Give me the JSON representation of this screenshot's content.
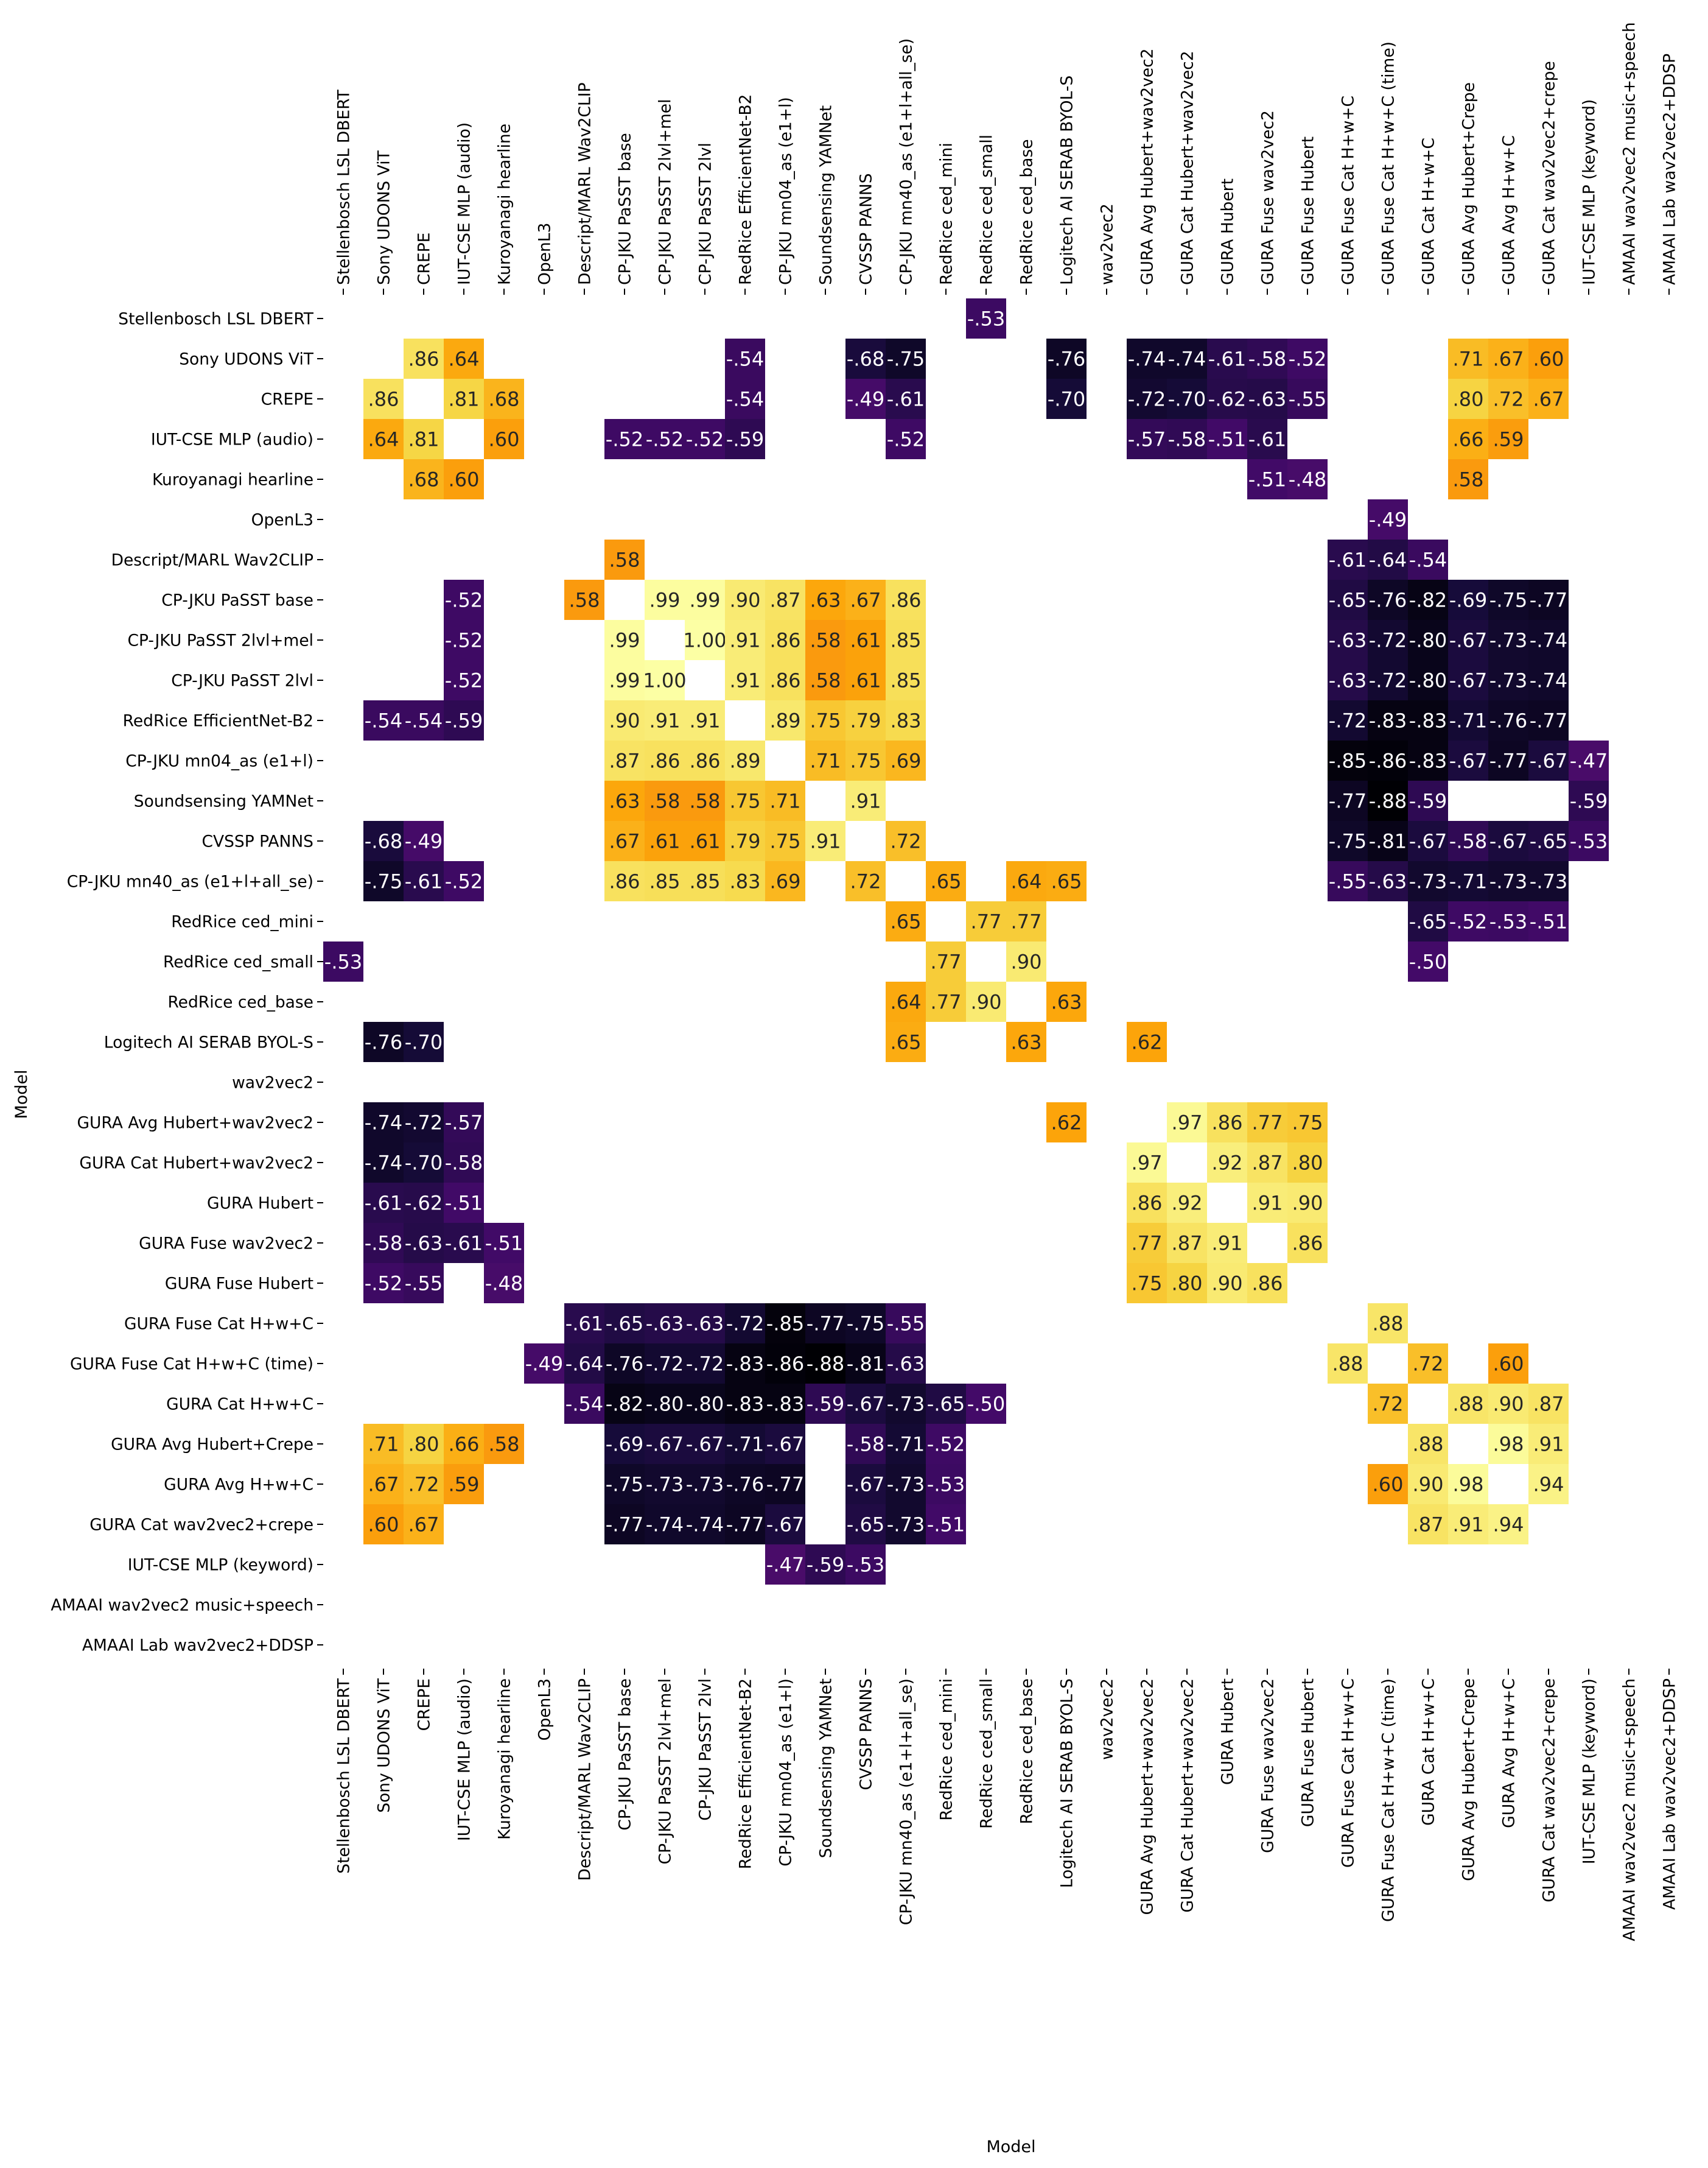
{
  "chart_data": {
    "type": "heatmap",
    "title": "",
    "xlabel": "Model",
    "ylabel": "Model",
    "colormap": "inferno",
    "value_range": [
      -0.88,
      1.0
    ],
    "colorbar": false,
    "masked_cells_blank": true,
    "labels": [
      "Stellenbosch LSL DBERT",
      "Sony UDONS ViT",
      "CREPE",
      "IUT-CSE MLP (audio)",
      "Kuroyanagi hearline",
      "OpenL3",
      "Descript/MARL Wav2CLIP",
      "CP-JKU PaSST base",
      "CP-JKU PaSST 2lvl+mel",
      "CP-JKU PaSST 2lvl",
      "RedRice EfficientNet-B2",
      "CP-JKU mn04_as (e1+l)",
      "Soundsensing YAMNet",
      "CVSSP PANNS",
      "CP-JKU mn40_as (e1+l+all_se)",
      "RedRice ced_mini",
      "RedRice ced_small",
      "RedRice ced_base",
      "Logitech AI SERAB BYOL-S",
      "wav2vec2",
      "GURA Avg Hubert+wav2vec2",
      "GURA Cat Hubert+wav2vec2",
      "GURA Hubert",
      "GURA Fuse wav2vec2",
      "GURA Fuse Hubert",
      "GURA Fuse Cat H+w+C",
      "GURA Fuse Cat H+w+C (time)",
      "GURA Cat H+w+C",
      "GURA Avg Hubert+Crepe",
      "GURA Avg H+w+C",
      "GURA Cat wav2vec2+crepe",
      "IUT-CSE MLP (keyword)",
      "AMAAI wav2vec2 music+speech",
      "AMAAI Lab wav2vec2+DDSP"
    ],
    "cells": [
      [
        0,
        16,
        -0.53
      ],
      [
        1,
        2,
        0.86
      ],
      [
        1,
        3,
        0.64
      ],
      [
        1,
        10,
        -0.54
      ],
      [
        1,
        13,
        -0.68
      ],
      [
        1,
        14,
        -0.75
      ],
      [
        1,
        18,
        -0.76
      ],
      [
        1,
        20,
        -0.74
      ],
      [
        1,
        21,
        -0.74
      ],
      [
        1,
        22,
        -0.61
      ],
      [
        1,
        23,
        -0.58
      ],
      [
        1,
        24,
        -0.52
      ],
      [
        1,
        28,
        0.71
      ],
      [
        1,
        29,
        0.67
      ],
      [
        1,
        30,
        0.6
      ],
      [
        2,
        1,
        0.86
      ],
      [
        2,
        3,
        0.81
      ],
      [
        2,
        4,
        0.68
      ],
      [
        2,
        10,
        -0.54
      ],
      [
        2,
        13,
        -0.49
      ],
      [
        2,
        14,
        -0.61
      ],
      [
        2,
        18,
        -0.7
      ],
      [
        2,
        20,
        -0.72
      ],
      [
        2,
        21,
        -0.7
      ],
      [
        2,
        22,
        -0.62
      ],
      [
        2,
        23,
        -0.63
      ],
      [
        2,
        24,
        -0.55
      ],
      [
        2,
        28,
        0.8
      ],
      [
        2,
        29,
        0.72
      ],
      [
        2,
        30,
        0.67
      ],
      [
        3,
        1,
        0.64
      ],
      [
        3,
        2,
        0.81
      ],
      [
        3,
        4,
        0.6
      ],
      [
        3,
        7,
        -0.52
      ],
      [
        3,
        8,
        -0.52
      ],
      [
        3,
        9,
        -0.52
      ],
      [
        3,
        10,
        -0.59
      ],
      [
        3,
        14,
        -0.52
      ],
      [
        3,
        20,
        -0.57
      ],
      [
        3,
        21,
        -0.58
      ],
      [
        3,
        22,
        -0.51
      ],
      [
        3,
        23,
        -0.61
      ],
      [
        3,
        28,
        0.66
      ],
      [
        3,
        29,
        0.59
      ],
      [
        4,
        2,
        0.68
      ],
      [
        4,
        3,
        0.6
      ],
      [
        4,
        23,
        -0.51
      ],
      [
        4,
        24,
        -0.48
      ],
      [
        4,
        28,
        0.58
      ],
      [
        5,
        26,
        -0.49
      ],
      [
        6,
        7,
        0.58
      ],
      [
        6,
        25,
        -0.61
      ],
      [
        6,
        26,
        -0.64
      ],
      [
        6,
        27,
        -0.54
      ],
      [
        7,
        3,
        -0.52
      ],
      [
        7,
        6,
        0.58
      ],
      [
        7,
        8,
        0.99
      ],
      [
        7,
        9,
        0.99
      ],
      [
        7,
        10,
        0.9
      ],
      [
        7,
        11,
        0.87
      ],
      [
        7,
        12,
        0.63
      ],
      [
        7,
        13,
        0.67
      ],
      [
        7,
        14,
        0.86
      ],
      [
        7,
        25,
        -0.65
      ],
      [
        7,
        26,
        -0.76
      ],
      [
        7,
        27,
        -0.82
      ],
      [
        7,
        28,
        -0.69
      ],
      [
        7,
        29,
        -0.75
      ],
      [
        7,
        30,
        -0.77
      ],
      [
        8,
        3,
        -0.52
      ],
      [
        8,
        7,
        0.99
      ],
      [
        8,
        9,
        1.0
      ],
      [
        8,
        10,
        0.91
      ],
      [
        8,
        11,
        0.86
      ],
      [
        8,
        12,
        0.58
      ],
      [
        8,
        13,
        0.61
      ],
      [
        8,
        14,
        0.85
      ],
      [
        8,
        25,
        -0.63
      ],
      [
        8,
        26,
        -0.72
      ],
      [
        8,
        27,
        -0.8
      ],
      [
        8,
        28,
        -0.67
      ],
      [
        8,
        29,
        -0.73
      ],
      [
        8,
        30,
        -0.74
      ],
      [
        9,
        3,
        -0.52
      ],
      [
        9,
        7,
        0.99
      ],
      [
        9,
        8,
        1.0
      ],
      [
        9,
        10,
        0.91
      ],
      [
        9,
        11,
        0.86
      ],
      [
        9,
        12,
        0.58
      ],
      [
        9,
        13,
        0.61
      ],
      [
        9,
        14,
        0.85
      ],
      [
        9,
        25,
        -0.63
      ],
      [
        9,
        26,
        -0.72
      ],
      [
        9,
        27,
        -0.8
      ],
      [
        9,
        28,
        -0.67
      ],
      [
        9,
        29,
        -0.73
      ],
      [
        9,
        30,
        -0.74
      ],
      [
        10,
        1,
        -0.54
      ],
      [
        10,
        2,
        -0.54
      ],
      [
        10,
        3,
        -0.59
      ],
      [
        10,
        7,
        0.9
      ],
      [
        10,
        8,
        0.91
      ],
      [
        10,
        9,
        0.91
      ],
      [
        10,
        11,
        0.89
      ],
      [
        10,
        12,
        0.75
      ],
      [
        10,
        13,
        0.79
      ],
      [
        10,
        14,
        0.83
      ],
      [
        10,
        25,
        -0.72
      ],
      [
        10,
        26,
        -0.83
      ],
      [
        10,
        27,
        -0.83
      ],
      [
        10,
        28,
        -0.71
      ],
      [
        10,
        29,
        -0.76
      ],
      [
        10,
        30,
        -0.77
      ],
      [
        11,
        7,
        0.87
      ],
      [
        11,
        8,
        0.86
      ],
      [
        11,
        9,
        0.86
      ],
      [
        11,
        10,
        0.89
      ],
      [
        11,
        12,
        0.71
      ],
      [
        11,
        13,
        0.75
      ],
      [
        11,
        14,
        0.69
      ],
      [
        11,
        25,
        -0.85
      ],
      [
        11,
        26,
        -0.86
      ],
      [
        11,
        27,
        -0.83
      ],
      [
        11,
        28,
        -0.67
      ],
      [
        11,
        29,
        -0.77
      ],
      [
        11,
        30,
        -0.67
      ],
      [
        11,
        31,
        -0.47
      ],
      [
        12,
        7,
        0.63
      ],
      [
        12,
        8,
        0.58
      ],
      [
        12,
        9,
        0.58
      ],
      [
        12,
        10,
        0.75
      ],
      [
        12,
        11,
        0.71
      ],
      [
        12,
        13,
        0.91
      ],
      [
        12,
        25,
        -0.77
      ],
      [
        12,
        26,
        -0.88
      ],
      [
        12,
        27,
        -0.59
      ],
      [
        12,
        31,
        -0.59
      ],
      [
        13,
        1,
        -0.68
      ],
      [
        13,
        2,
        -0.49
      ],
      [
        13,
        7,
        0.67
      ],
      [
        13,
        8,
        0.61
      ],
      [
        13,
        9,
        0.61
      ],
      [
        13,
        10,
        0.79
      ],
      [
        13,
        11,
        0.75
      ],
      [
        13,
        12,
        0.91
      ],
      [
        13,
        14,
        0.72
      ],
      [
        13,
        25,
        -0.75
      ],
      [
        13,
        26,
        -0.81
      ],
      [
        13,
        27,
        -0.67
      ],
      [
        13,
        28,
        -0.58
      ],
      [
        13,
        29,
        -0.67
      ],
      [
        13,
        30,
        -0.65
      ],
      [
        13,
        31,
        -0.53
      ],
      [
        14,
        1,
        -0.75
      ],
      [
        14,
        2,
        -0.61
      ],
      [
        14,
        3,
        -0.52
      ],
      [
        14,
        7,
        0.86
      ],
      [
        14,
        8,
        0.85
      ],
      [
        14,
        9,
        0.85
      ],
      [
        14,
        10,
        0.83
      ],
      [
        14,
        11,
        0.69
      ],
      [
        14,
        13,
        0.72
      ],
      [
        14,
        15,
        0.65
      ],
      [
        14,
        17,
        0.64
      ],
      [
        14,
        18,
        0.65
      ],
      [
        14,
        25,
        -0.55
      ],
      [
        14,
        26,
        -0.63
      ],
      [
        14,
        27,
        -0.73
      ],
      [
        14,
        28,
        -0.71
      ],
      [
        14,
        29,
        -0.73
      ],
      [
        14,
        30,
        -0.73
      ],
      [
        15,
        14,
        0.65
      ],
      [
        15,
        16,
        0.77
      ],
      [
        15,
        17,
        0.77
      ],
      [
        15,
        27,
        -0.65
      ],
      [
        15,
        28,
        -0.52
      ],
      [
        15,
        29,
        -0.53
      ],
      [
        15,
        30,
        -0.51
      ],
      [
        16,
        0,
        -0.53
      ],
      [
        16,
        15,
        0.77
      ],
      [
        16,
        17,
        0.9
      ],
      [
        16,
        27,
        -0.5
      ],
      [
        17,
        14,
        0.64
      ],
      [
        17,
        15,
        0.77
      ],
      [
        17,
        16,
        0.9
      ],
      [
        17,
        18,
        0.63
      ],
      [
        18,
        1,
        -0.76
      ],
      [
        18,
        2,
        -0.7
      ],
      [
        18,
        14,
        0.65
      ],
      [
        18,
        17,
        0.63
      ],
      [
        18,
        20,
        0.62
      ],
      [
        20,
        1,
        -0.74
      ],
      [
        20,
        2,
        -0.72
      ],
      [
        20,
        3,
        -0.57
      ],
      [
        20,
        18,
        0.62
      ],
      [
        20,
        21,
        0.97
      ],
      [
        20,
        22,
        0.86
      ],
      [
        20,
        23,
        0.77
      ],
      [
        20,
        24,
        0.75
      ],
      [
        21,
        1,
        -0.74
      ],
      [
        21,
        2,
        -0.7
      ],
      [
        21,
        3,
        -0.58
      ],
      [
        21,
        20,
        0.97
      ],
      [
        21,
        22,
        0.92
      ],
      [
        21,
        23,
        0.87
      ],
      [
        21,
        24,
        0.8
      ],
      [
        22,
        1,
        -0.61
      ],
      [
        22,
        2,
        -0.62
      ],
      [
        22,
        3,
        -0.51
      ],
      [
        22,
        20,
        0.86
      ],
      [
        22,
        21,
        0.92
      ],
      [
        22,
        23,
        0.91
      ],
      [
        22,
        24,
        0.9
      ],
      [
        23,
        1,
        -0.58
      ],
      [
        23,
        2,
        -0.63
      ],
      [
        23,
        3,
        -0.61
      ],
      [
        23,
        4,
        -0.51
      ],
      [
        23,
        20,
        0.77
      ],
      [
        23,
        21,
        0.87
      ],
      [
        23,
        22,
        0.91
      ],
      [
        23,
        24,
        0.86
      ],
      [
        24,
        1,
        -0.52
      ],
      [
        24,
        2,
        -0.55
      ],
      [
        24,
        4,
        -0.48
      ],
      [
        24,
        20,
        0.75
      ],
      [
        24,
        21,
        0.8
      ],
      [
        24,
        22,
        0.9
      ],
      [
        24,
        23,
        0.86
      ],
      [
        25,
        6,
        -0.61
      ],
      [
        25,
        7,
        -0.65
      ],
      [
        25,
        8,
        -0.63
      ],
      [
        25,
        9,
        -0.63
      ],
      [
        25,
        10,
        -0.72
      ],
      [
        25,
        11,
        -0.85
      ],
      [
        25,
        12,
        -0.77
      ],
      [
        25,
        13,
        -0.75
      ],
      [
        25,
        14,
        -0.55
      ],
      [
        25,
        26,
        0.88
      ],
      [
        26,
        5,
        -0.49
      ],
      [
        26,
        6,
        -0.64
      ],
      [
        26,
        7,
        -0.76
      ],
      [
        26,
        8,
        -0.72
      ],
      [
        26,
        9,
        -0.72
      ],
      [
        26,
        10,
        -0.83
      ],
      [
        26,
        11,
        -0.86
      ],
      [
        26,
        12,
        -0.88
      ],
      [
        26,
        13,
        -0.81
      ],
      [
        26,
        14,
        -0.63
      ],
      [
        26,
        25,
        0.88
      ],
      [
        26,
        27,
        0.72
      ],
      [
        26,
        29,
        0.6
      ],
      [
        27,
        6,
        -0.54
      ],
      [
        27,
        7,
        -0.82
      ],
      [
        27,
        8,
        -0.8
      ],
      [
        27,
        9,
        -0.8
      ],
      [
        27,
        10,
        -0.83
      ],
      [
        27,
        11,
        -0.83
      ],
      [
        27,
        12,
        -0.59
      ],
      [
        27,
        13,
        -0.67
      ],
      [
        27,
        14,
        -0.73
      ],
      [
        27,
        15,
        -0.65
      ],
      [
        27,
        16,
        -0.5
      ],
      [
        27,
        26,
        0.72
      ],
      [
        27,
        28,
        0.88
      ],
      [
        27,
        29,
        0.9
      ],
      [
        27,
        30,
        0.87
      ],
      [
        28,
        1,
        0.71
      ],
      [
        28,
        2,
        0.8
      ],
      [
        28,
        3,
        0.66
      ],
      [
        28,
        4,
        0.58
      ],
      [
        28,
        7,
        -0.69
      ],
      [
        28,
        8,
        -0.67
      ],
      [
        28,
        9,
        -0.67
      ],
      [
        28,
        10,
        -0.71
      ],
      [
        28,
        11,
        -0.67
      ],
      [
        28,
        13,
        -0.58
      ],
      [
        28,
        14,
        -0.71
      ],
      [
        28,
        15,
        -0.52
      ],
      [
        28,
        27,
        0.88
      ],
      [
        28,
        29,
        0.98
      ],
      [
        28,
        30,
        0.91
      ],
      [
        29,
        1,
        0.67
      ],
      [
        29,
        2,
        0.72
      ],
      [
        29,
        3,
        0.59
      ],
      [
        29,
        7,
        -0.75
      ],
      [
        29,
        8,
        -0.73
      ],
      [
        29,
        9,
        -0.73
      ],
      [
        29,
        10,
        -0.76
      ],
      [
        29,
        11,
        -0.77
      ],
      [
        29,
        13,
        -0.67
      ],
      [
        29,
        14,
        -0.73
      ],
      [
        29,
        15,
        -0.53
      ],
      [
        29,
        26,
        0.6
      ],
      [
        29,
        27,
        0.9
      ],
      [
        29,
        28,
        0.98
      ],
      [
        29,
        30,
        0.94
      ],
      [
        30,
        1,
        0.6
      ],
      [
        30,
        2,
        0.67
      ],
      [
        30,
        7,
        -0.77
      ],
      [
        30,
        8,
        -0.74
      ],
      [
        30,
        9,
        -0.74
      ],
      [
        30,
        10,
        -0.77
      ],
      [
        30,
        11,
        -0.67
      ],
      [
        30,
        13,
        -0.65
      ],
      [
        30,
        14,
        -0.73
      ],
      [
        30,
        15,
        -0.51
      ],
      [
        30,
        27,
        0.87
      ],
      [
        30,
        28,
        0.91
      ],
      [
        30,
        29,
        0.94
      ],
      [
        31,
        11,
        -0.47
      ],
      [
        31,
        12,
        -0.59
      ],
      [
        31,
        13,
        -0.53
      ]
    ]
  }
}
